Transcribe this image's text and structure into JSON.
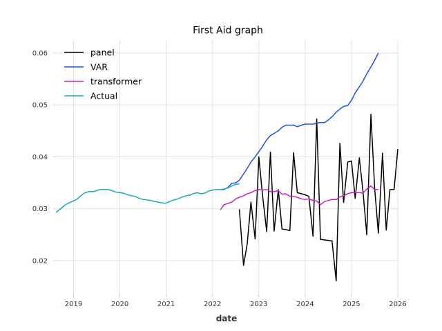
{
  "chart_data": {
    "type": "line",
    "title": "First Aid graph",
    "xlabel": "date",
    "ylabel": "",
    "xlim": [
      2018.62,
      2026.0
    ],
    "ylim": [
      0.0135,
      0.0625
    ],
    "x_ticks": [
      2019,
      2020,
      2021,
      2022,
      2023,
      2024,
      2025,
      2026
    ],
    "x_tick_labels": [
      "2019",
      "2020",
      "2021",
      "2022",
      "2023",
      "2024",
      "2025",
      "2026"
    ],
    "y_ticks": [
      0.02,
      0.03,
      0.04,
      0.05,
      0.06
    ],
    "y_tick_labels": [
      "0.02",
      "0.03",
      "0.04",
      "0.05",
      "0.06"
    ],
    "grid": true,
    "legend_position": "top-left",
    "series": [
      {
        "name": "panel",
        "color": "#000000",
        "points": [
          [
            2022.58,
            0.0299
          ],
          [
            2022.67,
            0.0191
          ],
          [
            2022.75,
            0.0233
          ],
          [
            2022.83,
            0.0313
          ],
          [
            2022.92,
            0.0242
          ],
          [
            2023.0,
            0.04
          ],
          [
            2023.08,
            0.0326
          ],
          [
            2023.17,
            0.0256
          ],
          [
            2023.25,
            0.0409
          ],
          [
            2023.33,
            0.0257
          ],
          [
            2023.42,
            0.0337
          ],
          [
            2023.5,
            0.0261
          ],
          [
            2023.58,
            0.026
          ],
          [
            2023.67,
            0.0258
          ],
          [
            2023.75,
            0.0408
          ],
          [
            2023.83,
            0.0331
          ],
          [
            2024.0,
            0.0327
          ],
          [
            2024.08,
            0.0324
          ],
          [
            2024.17,
            0.0247
          ],
          [
            2024.25,
            0.0473
          ],
          [
            2024.33,
            0.0241
          ],
          [
            2024.58,
            0.0238
          ],
          [
            2024.67,
            0.0161
          ],
          [
            2024.75,
            0.0426
          ],
          [
            2024.83,
            0.0312
          ],
          [
            2024.92,
            0.039
          ],
          [
            2025.0,
            0.0392
          ],
          [
            2025.08,
            0.032
          ],
          [
            2025.17,
            0.0398
          ],
          [
            2025.25,
            0.0332
          ],
          [
            2025.33,
            0.025
          ],
          [
            2025.42,
            0.0482
          ],
          [
            2025.5,
            0.034
          ],
          [
            2025.58,
            0.0253
          ],
          [
            2025.67,
            0.0407
          ],
          [
            2025.75,
            0.0259
          ],
          [
            2025.83,
            0.0337
          ],
          [
            2025.92,
            0.0337
          ],
          [
            2026.0,
            0.0415
          ]
        ]
      },
      {
        "name": "VAR",
        "color": "#1f4ef0",
        "points": [
          [
            2022.17,
            0.0337
          ],
          [
            2022.25,
            0.0337
          ],
          [
            2022.33,
            0.0341
          ],
          [
            2022.42,
            0.0349
          ],
          [
            2022.5,
            0.035
          ],
          [
            2022.58,
            0.0355
          ],
          [
            2022.67,
            0.0367
          ],
          [
            2022.75,
            0.0378
          ],
          [
            2022.83,
            0.039
          ],
          [
            2022.92,
            0.04
          ],
          [
            2023.0,
            0.041
          ],
          [
            2023.08,
            0.042
          ],
          [
            2023.17,
            0.0433
          ],
          [
            2023.25,
            0.0441
          ],
          [
            2023.33,
            0.0445
          ],
          [
            2023.42,
            0.045
          ],
          [
            2023.5,
            0.0457
          ],
          [
            2023.58,
            0.0461
          ],
          [
            2023.67,
            0.0461
          ],
          [
            2023.75,
            0.0461
          ],
          [
            2023.83,
            0.0458
          ],
          [
            2023.92,
            0.0461
          ],
          [
            2024.0,
            0.0463
          ],
          [
            2024.08,
            0.0463
          ],
          [
            2024.17,
            0.0463
          ],
          [
            2024.25,
            0.0465
          ],
          [
            2024.33,
            0.0466
          ],
          [
            2024.42,
            0.0466
          ],
          [
            2024.5,
            0.0471
          ],
          [
            2024.58,
            0.0477
          ],
          [
            2024.67,
            0.0486
          ],
          [
            2024.75,
            0.0492
          ],
          [
            2024.83,
            0.0497
          ],
          [
            2024.92,
            0.0499
          ],
          [
            2025.0,
            0.0509
          ],
          [
            2025.08,
            0.0523
          ],
          [
            2025.17,
            0.0535
          ],
          [
            2025.25,
            0.0546
          ],
          [
            2025.33,
            0.056
          ],
          [
            2025.42,
            0.0573
          ],
          [
            2025.5,
            0.0586
          ],
          [
            2025.58,
            0.06
          ]
        ]
      },
      {
        "name": "transformer",
        "color": "#c020c0",
        "points": [
          [
            2022.17,
            0.0298
          ],
          [
            2022.25,
            0.0308
          ],
          [
            2022.33,
            0.031
          ],
          [
            2022.42,
            0.0313
          ],
          [
            2022.5,
            0.0319
          ],
          [
            2022.58,
            0.0322
          ],
          [
            2022.67,
            0.0325
          ],
          [
            2022.75,
            0.0329
          ],
          [
            2022.83,
            0.0331
          ],
          [
            2022.92,
            0.0335
          ],
          [
            2023.0,
            0.0337
          ],
          [
            2023.08,
            0.0336
          ],
          [
            2023.17,
            0.0337
          ],
          [
            2023.25,
            0.0333
          ],
          [
            2023.33,
            0.0333
          ],
          [
            2023.42,
            0.0335
          ],
          [
            2023.5,
            0.0328
          ],
          [
            2023.58,
            0.0329
          ],
          [
            2023.67,
            0.0324
          ],
          [
            2023.75,
            0.0324
          ],
          [
            2023.83,
            0.0322
          ],
          [
            2023.92,
            0.0319
          ],
          [
            2024.0,
            0.0318
          ],
          [
            2024.08,
            0.0319
          ],
          [
            2024.17,
            0.0316
          ],
          [
            2024.25,
            0.0315
          ],
          [
            2024.33,
            0.0308
          ],
          [
            2024.42,
            0.0314
          ],
          [
            2024.5,
            0.0316
          ],
          [
            2024.58,
            0.0318
          ],
          [
            2024.67,
            0.0318
          ],
          [
            2024.75,
            0.0323
          ],
          [
            2024.83,
            0.0325
          ],
          [
            2024.92,
            0.0329
          ],
          [
            2025.0,
            0.0331
          ],
          [
            2025.08,
            0.0331
          ],
          [
            2025.17,
            0.0331
          ],
          [
            2025.25,
            0.033
          ],
          [
            2025.33,
            0.0338
          ],
          [
            2025.42,
            0.0344
          ],
          [
            2025.5,
            0.0337
          ],
          [
            2025.58,
            0.0337
          ]
        ]
      },
      {
        "name": "Actual",
        "color": "#18a8b8",
        "points": [
          [
            2018.62,
            0.0293
          ],
          [
            2018.75,
            0.0302
          ],
          [
            2018.83,
            0.0308
          ],
          [
            2018.92,
            0.0312
          ],
          [
            2019.0,
            0.0315
          ],
          [
            2019.08,
            0.0319
          ],
          [
            2019.17,
            0.0326
          ],
          [
            2019.25,
            0.0331
          ],
          [
            2019.33,
            0.0333
          ],
          [
            2019.42,
            0.0333
          ],
          [
            2019.5,
            0.0335
          ],
          [
            2019.58,
            0.0337
          ],
          [
            2019.67,
            0.0337
          ],
          [
            2019.75,
            0.0337
          ],
          [
            2019.83,
            0.0335
          ],
          [
            2019.92,
            0.0332
          ],
          [
            2020.0,
            0.0331
          ],
          [
            2020.08,
            0.033
          ],
          [
            2020.17,
            0.0327
          ],
          [
            2020.25,
            0.0325
          ],
          [
            2020.33,
            0.0324
          ],
          [
            2020.42,
            0.032
          ],
          [
            2020.5,
            0.0318
          ],
          [
            2020.58,
            0.0317
          ],
          [
            2020.67,
            0.0316
          ],
          [
            2020.75,
            0.0314
          ],
          [
            2020.83,
            0.0313
          ],
          [
            2020.92,
            0.0311
          ],
          [
            2021.0,
            0.0311
          ],
          [
            2021.08,
            0.0314
          ],
          [
            2021.17,
            0.0317
          ],
          [
            2021.25,
            0.0319
          ],
          [
            2021.33,
            0.0322
          ],
          [
            2021.42,
            0.0325
          ],
          [
            2021.5,
            0.0326
          ],
          [
            2021.58,
            0.0329
          ],
          [
            2021.67,
            0.0331
          ],
          [
            2021.75,
            0.0329
          ],
          [
            2021.83,
            0.033
          ],
          [
            2021.92,
            0.0334
          ],
          [
            2022.0,
            0.0336
          ],
          [
            2022.08,
            0.0337
          ],
          [
            2022.17,
            0.0337
          ],
          [
            2022.25,
            0.0338
          ],
          [
            2022.33,
            0.034
          ],
          [
            2022.42,
            0.0344
          ],
          [
            2022.5,
            0.0347
          ],
          [
            2022.58,
            0.0348
          ]
        ]
      }
    ]
  }
}
